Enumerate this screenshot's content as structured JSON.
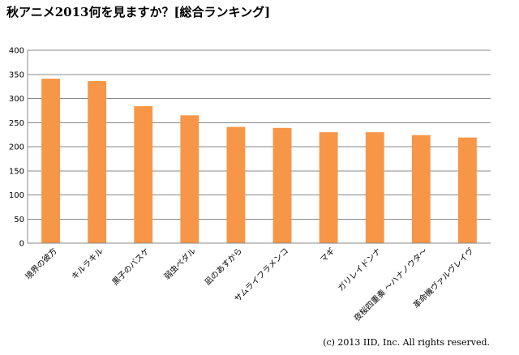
{
  "chart_data": {
    "type": "bar",
    "title": "秋アニメ2013何を見ますか？[総合ランキング]",
    "categories": [
      "境界の彼方",
      "キルラキル",
      "黒子のバスケ",
      "弱虫ペダル",
      "凪のあすから",
      "サムライフラメンコ",
      "マギ",
      "ガリレイドンナ",
      "夜桜四重奏 ～ハナノウタ～",
      "革命機ヴァルヴレイヴ"
    ],
    "values": [
      341,
      336,
      284,
      265,
      241,
      239,
      230,
      230,
      224,
      219
    ],
    "ylim": [
      0,
      400
    ],
    "yticks": [
      0,
      50,
      100,
      150,
      200,
      250,
      300,
      350,
      400
    ],
    "grid": true,
    "legend": "none",
    "bar_color": "#F79646",
    "grid_color": "#888888"
  },
  "footer": {
    "copyright": "(c) 2013 IID, Inc. All rights reserved."
  }
}
